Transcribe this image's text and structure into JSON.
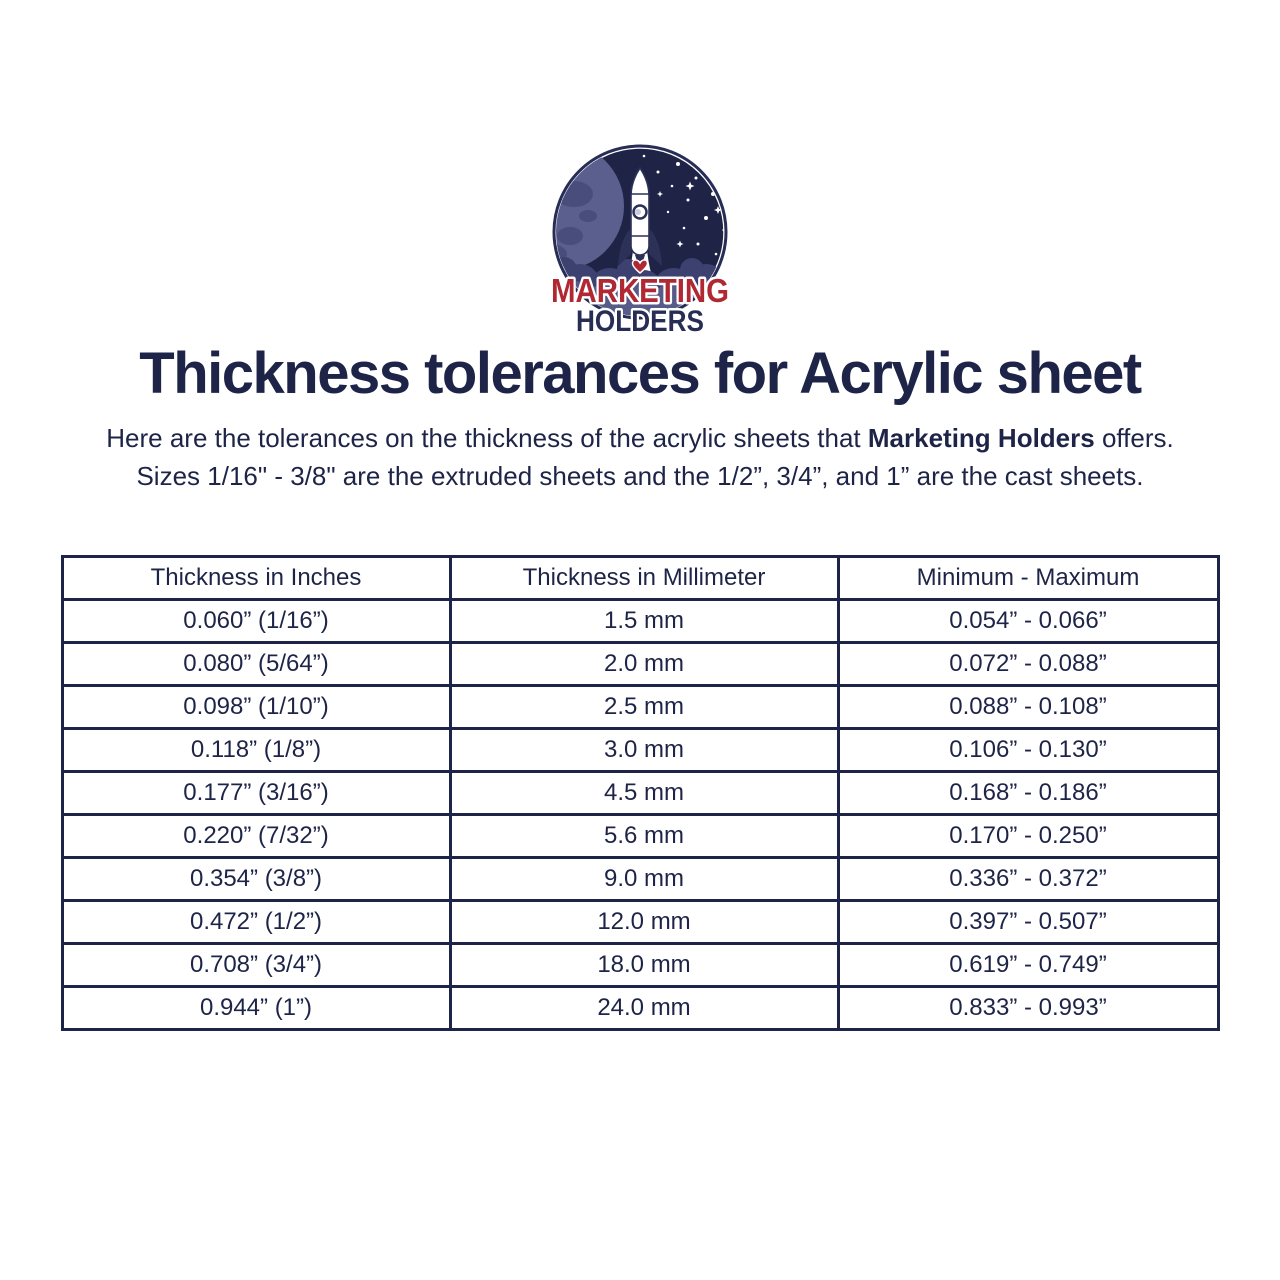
{
  "logo": {
    "line1": "MARKETING",
    "line2": "HOLDERS"
  },
  "heading": {
    "title": "Thickness tolerances for Acrylic sheet"
  },
  "intro": {
    "line1_prefix": "Here are the tolerances on the thickness of the acrylic sheets that ",
    "brand": "Marketing Holders",
    "line1_suffix": " offers.",
    "line2": "Sizes 1/16\" - 3/8\" are the extruded sheets and the 1/2”, 3/4”, and 1” are the cast sheets."
  },
  "table": {
    "headers": [
      "Thickness in Inches",
      "Thickness in Millimeter",
      "Minimum - Maximum"
    ],
    "rows": [
      [
        "0.060” (1/16”)",
        "1.5 mm",
        "0.054” - 0.066”"
      ],
      [
        "0.080” (5/64”)",
        "2.0 mm",
        "0.072” - 0.088”"
      ],
      [
        "0.098” (1/10”)",
        "2.5 mm",
        "0.088” - 0.108”"
      ],
      [
        "0.118” (1/8”)",
        "3.0 mm",
        "0.106” - 0.130”"
      ],
      [
        "0.177” (3/16”)",
        "4.5 mm",
        "0.168” - 0.186”"
      ],
      [
        "0.220” (7/32”)",
        "5.6 mm",
        "0.170” - 0.250”"
      ],
      [
        "0.354” (3/8”)",
        "9.0 mm",
        "0.336” - 0.372”"
      ],
      [
        "0.472” (1/2”)",
        "12.0 mm",
        "0.397” - 0.507”"
      ],
      [
        "0.708” (3/4”)",
        "18.0 mm",
        "0.619” - 0.749”"
      ],
      [
        "0.944” (1”)",
        "24.0 mm",
        "0.833” - 0.993”"
      ]
    ]
  },
  "colors": {
    "navy": "#1d2447",
    "logo_red": "#b02832",
    "logo_navy": "#272d55",
    "background": "#ffffff"
  }
}
